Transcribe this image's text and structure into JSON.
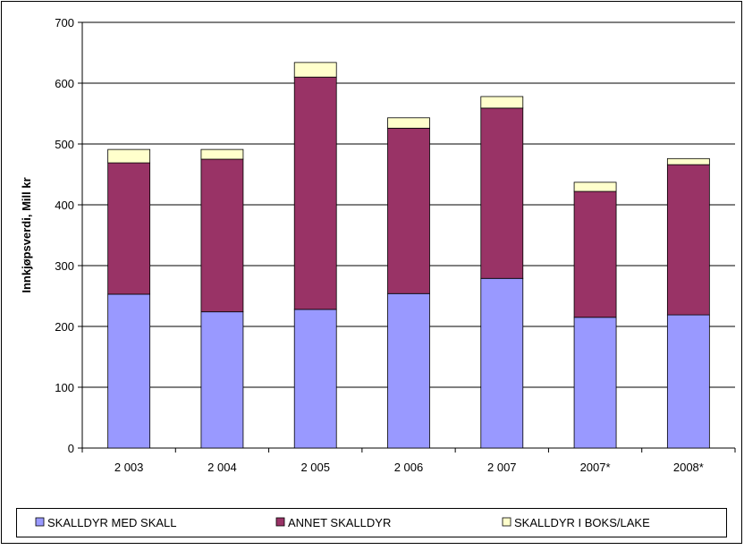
{
  "chart_data": {
    "type": "stacked_bar",
    "y_label": "Innkjøpsverdi, Mill kr",
    "categories": [
      "2 003",
      "2 004",
      "2 005",
      "2 006",
      "2 007",
      "2007*",
      "2008*"
    ],
    "series": [
      {
        "name": "SKALLDYR MED SKALL",
        "color": "#9999ff",
        "values": [
          253,
          224,
          228,
          254,
          279,
          215,
          219
        ]
      },
      {
        "name": "ANNET SKALLDYR",
        "color": "#993366",
        "values": [
          216,
          251,
          382,
          272,
          280,
          207,
          247
        ]
      },
      {
        "name": "SKALLDYR I BOKS/LAKE",
        "color": "#ffffcc",
        "values": [
          22,
          16,
          24,
          17,
          19,
          15,
          10
        ]
      }
    ],
    "ylim": [
      0,
      700
    ],
    "yticks": [
      0,
      100,
      200,
      300,
      400,
      500,
      600,
      700
    ],
    "grid": true
  }
}
